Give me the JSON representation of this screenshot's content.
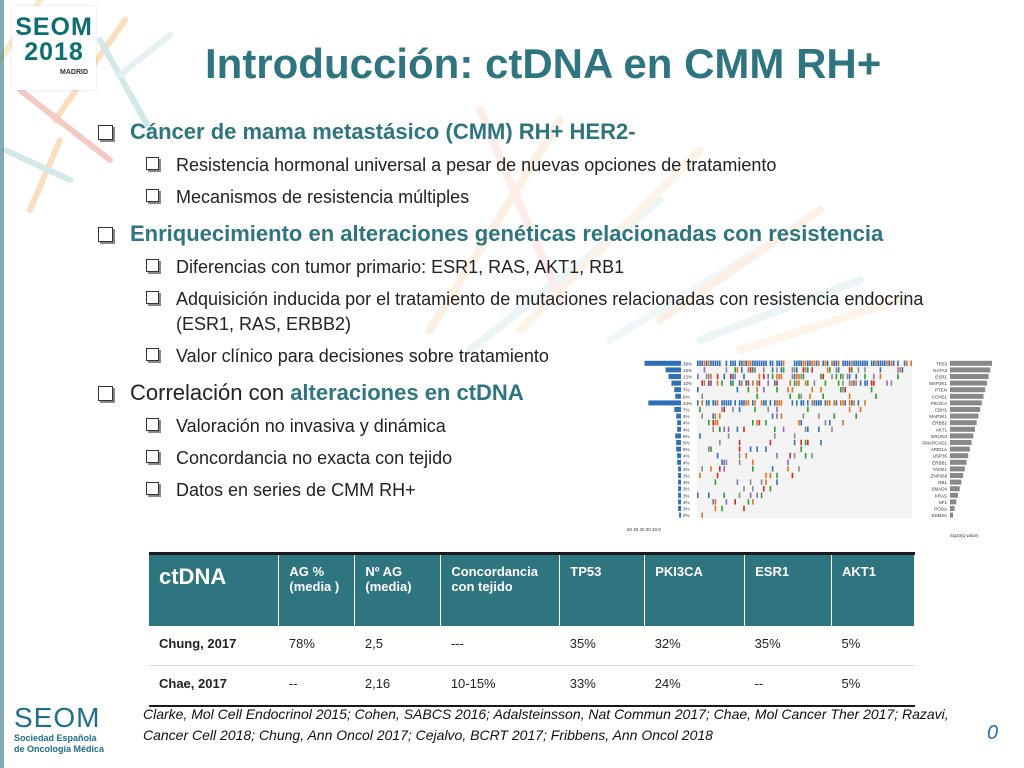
{
  "logo_top": {
    "line1": "SEOM",
    "line2": "2018",
    "line3": "MADRID"
  },
  "title": "Introducción: ctDNA en CMM RH+",
  "bullets": {
    "b1": "Cáncer de mama metastásico (CMM) RH+ HER2-",
    "b1_1": "Resistencia hormonal universal a pesar de nuevas opciones de tratamiento",
    "b1_2": "Mecanismos de resistencia múltiples",
    "b2": "Enriquecimiento en alteraciones genéticas relacionadas con resistencia",
    "b2_1": "Diferencias con tumor primario: ESR1, RAS, AKT1, RB1",
    "b2_2": "Adquisición inducida por el tratamiento de mutaciones relacionadas con resistencia endocrina (ESR1, RAS, ERBB2)",
    "b2_3": "Valor clínico para decisiones sobre tratamiento",
    "b3_prefix": "Correlación con ",
    "b3_highlight": "alteraciones en ctDNA",
    "b3_1": "Valoración no invasiva y dinámica",
    "b3_2": "Concordancia no exacta con tejido",
    "b3_3": "Datos en series de CMM RH+"
  },
  "table": {
    "headers": [
      "ctDNA",
      "AG % (media )",
      "Nº AG (media)",
      "Concordancia con tejido",
      "TP53",
      "PKI3CA",
      "ESR1",
      "AKT1"
    ],
    "rows": [
      [
        "Chung, 2017",
        "78%",
        "2,5",
        "---",
        "35%",
        "32%",
        "35%",
        "5%"
      ],
      [
        "Chae, 2017",
        "--",
        "2,16",
        "10-15%",
        "33%",
        "24%",
        "--",
        "5%"
      ]
    ]
  },
  "references": "Clarke, Mol Cell Endocrinol 2015; Cohen, SABCS 2016; Adalsteinsson, Nat Commun 2017;  Chae, Mol Cancer Ther 2017; Razavi, Cancer Cell 2018; Chung, Ann Oncol 2017; Cejalvo, BCRT 2017; Fribbens,  Ann Oncol 2018",
  "logo_bottom": {
    "line1": "SEOM",
    "line2": "Sociedad Española",
    "line3": "de Oncología Médica"
  },
  "page_number": "0",
  "figure": {
    "genes": [
      "TP53",
      "GATA3",
      "ESR1",
      "MAP3K1",
      "PTEN",
      "CCNE1",
      "PIK3CA",
      "CDH1",
      "MAP3K1",
      "ERBB2",
      "AKT1",
      "ERLIN3",
      "SMARCAD1",
      "ARID1A",
      "USP35",
      "ERBB1",
      "TAOK1",
      "ZNF668",
      "RB1",
      "SMAD4",
      "KRAS",
      "NF1",
      "PODA",
      "KDM2A"
    ],
    "left_pcts": [
      "38%",
      "16%",
      "13%",
      "10%",
      "7%",
      "6%",
      "34%",
      "7%",
      "5%",
      "4%",
      "4%",
      "6%",
      "5%",
      "5%",
      "4%",
      "4%",
      "3%",
      "3%",
      "3%",
      "3%",
      "3%",
      "3%",
      "3%",
      "2%"
    ],
    "left_axis_label": "50 40 30 20 10 0",
    "right_axis_label": "log10(q value)",
    "colors": {
      "missense": "#2f6fb7",
      "truncating": "#e37222",
      "inframe": "#8b8b8b",
      "amp": "#d62728",
      "other": "#2ca02c",
      "multi": "#9467bd",
      "bar": "#888888",
      "accent": "#4a5fb0"
    }
  }
}
